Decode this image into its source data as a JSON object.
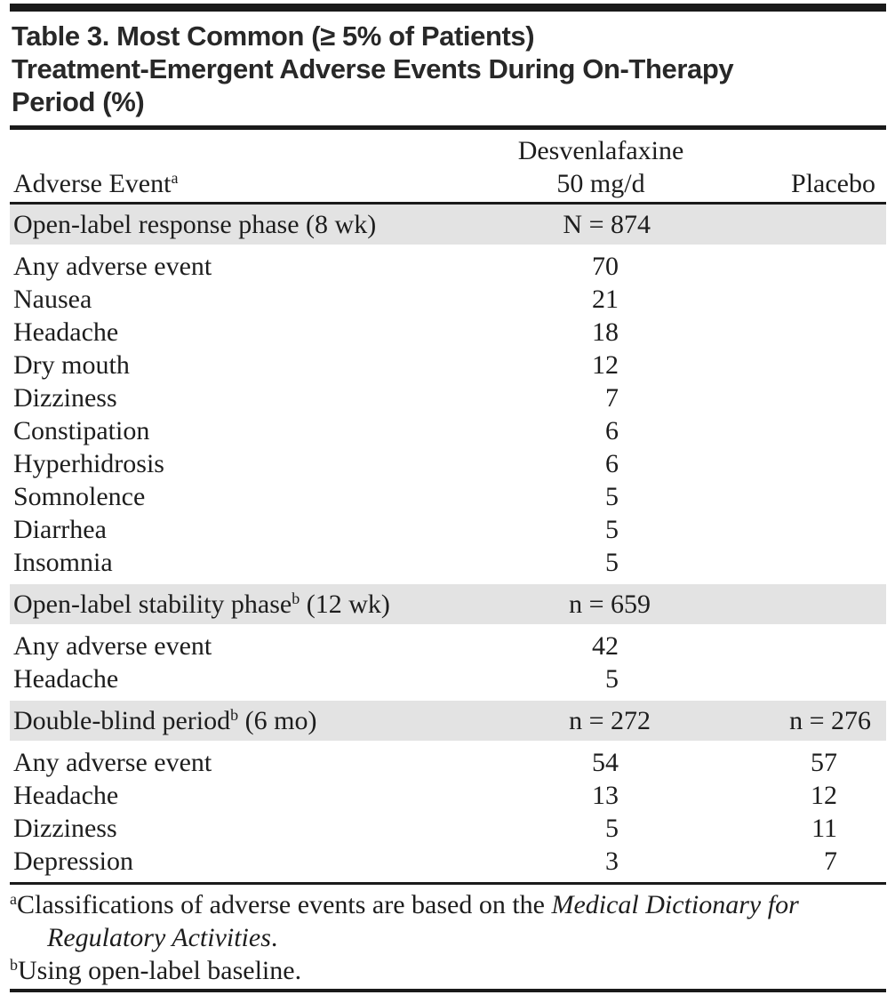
{
  "title": {
    "lines": [
      "Table 3. Most Common (≥ 5% of Patients)",
      "Treatment-Emergent Adverse Events During On-Therapy",
      "Period (%)"
    ]
  },
  "table": {
    "header": {
      "row_label": "Adverse Event",
      "row_label_sup": "a",
      "drug_line1": "Desvenlafaxine",
      "drug_line2": "50 mg/d",
      "placebo": "Placebo"
    },
    "sections": [
      {
        "label": "Open-label response phase (8 wk)",
        "label_sup": "",
        "label_suffix": "",
        "drug_n": "N = 874",
        "placebo_n": "",
        "rows": [
          {
            "event": "Any adverse event",
            "drug": "70",
            "placebo": ""
          },
          {
            "event": "Nausea",
            "drug": "21",
            "placebo": ""
          },
          {
            "event": "Headache",
            "drug": "18",
            "placebo": ""
          },
          {
            "event": "Dry mouth",
            "drug": "12",
            "placebo": ""
          },
          {
            "event": "Dizziness",
            "drug": "7",
            "placebo": ""
          },
          {
            "event": "Constipation",
            "drug": "6",
            "placebo": ""
          },
          {
            "event": "Hyperhidrosis",
            "drug": "6",
            "placebo": ""
          },
          {
            "event": "Somnolence",
            "drug": "5",
            "placebo": ""
          },
          {
            "event": "Diarrhea",
            "drug": "5",
            "placebo": ""
          },
          {
            "event": "Insomnia",
            "drug": "5",
            "placebo": ""
          }
        ]
      },
      {
        "label": "Open-label stability phase",
        "label_sup": "b",
        "label_suffix": " (12 wk)",
        "drug_n": "n = 659",
        "placebo_n": "",
        "rows": [
          {
            "event": "Any adverse event",
            "drug": "42",
            "placebo": ""
          },
          {
            "event": "Headache",
            "drug": "5",
            "placebo": ""
          }
        ]
      },
      {
        "label": "Double-blind period",
        "label_sup": "b",
        "label_suffix": " (6 mo)",
        "drug_n": "n = 272",
        "placebo_n": "n = 276",
        "rows": [
          {
            "event": "Any adverse event",
            "drug": "54",
            "placebo": "57"
          },
          {
            "event": "Headache",
            "drug": "13",
            "placebo": "12"
          },
          {
            "event": "Dizziness",
            "drug": "5",
            "placebo": "11"
          },
          {
            "event": "Depression",
            "drug": "3",
            "placebo": "7"
          }
        ]
      }
    ]
  },
  "footnotes": [
    {
      "marker": "a",
      "parts": [
        {
          "text": "Classifications of adverse events are based on the ",
          "italic": false
        },
        {
          "text": "Medical Dictionary for Regulatory Activities",
          "italic": true
        },
        {
          "text": ".",
          "italic": false
        }
      ]
    },
    {
      "marker": "b",
      "parts": [
        {
          "text": "Using open-label baseline.",
          "italic": false
        }
      ]
    }
  ],
  "colors": {
    "text": "#1d1d1d",
    "title_text": "#282828",
    "rule": "#1a1a1a",
    "section_band": "#e3e3e3"
  }
}
